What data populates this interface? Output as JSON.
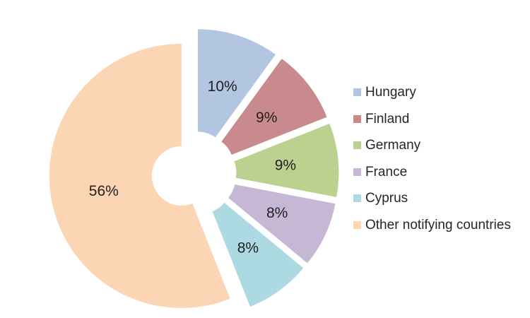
{
  "chart_data": {
    "type": "pie",
    "subtype": "exploded_doughnut",
    "title": "",
    "legend_position": "right",
    "start_angle_deg": 0,
    "direction": "clockwise",
    "categories": [
      "Hungary",
      "Finland",
      "Germany",
      "France",
      "Cyprus",
      "Other notifying countries"
    ],
    "values": [
      10,
      9,
      9,
      8,
      8,
      56
    ],
    "data_labels": [
      "10%",
      "9%",
      "9%",
      "8%",
      "8%",
      "56%"
    ],
    "colors": [
      "#b2c6e2",
      "#c88a8c",
      "#bcd190",
      "#c6b8d5",
      "#add9e2",
      "#fcd5b4"
    ],
    "label_color": "#1f1f1f",
    "background": "#ffffff"
  },
  "legend": {
    "items": [
      {
        "label": "Hungary",
        "color": "#b2c6e2"
      },
      {
        "label": "Finland",
        "color": "#c88a8c"
      },
      {
        "label": "Germany",
        "color": "#bcd190"
      },
      {
        "label": "France",
        "color": "#c6b8d5"
      },
      {
        "label": "Cyprus",
        "color": "#add9e2"
      },
      {
        "label": "Other notifying countries",
        "color": "#fcd5b4"
      }
    ]
  }
}
